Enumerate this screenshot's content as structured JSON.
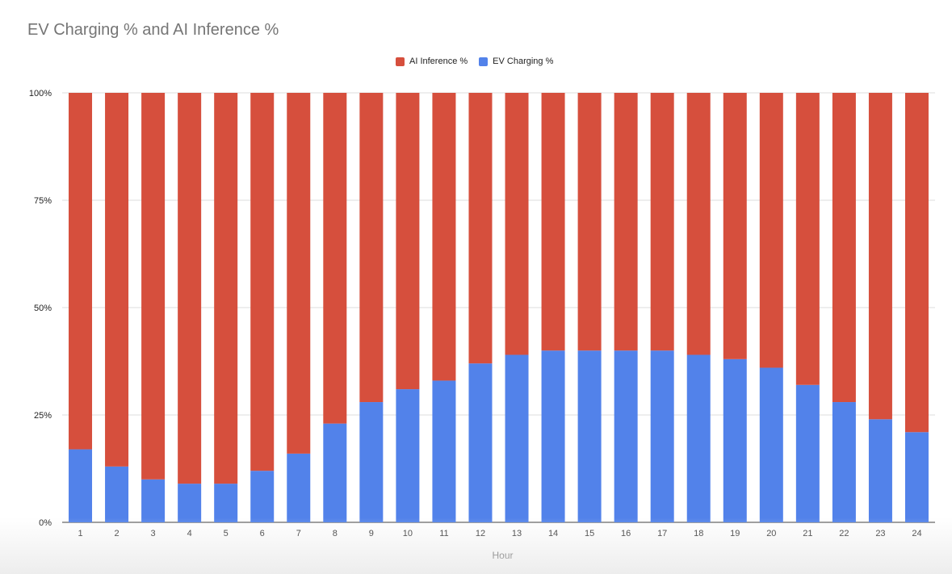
{
  "chart_data": {
    "type": "bar",
    "stacked": true,
    "title": "EV Charging % and AI Inference %",
    "xlabel": "Hour",
    "ylabel": "",
    "ylim": [
      0,
      100
    ],
    "y_ticks": [
      "0%",
      "25%",
      "50%",
      "75%",
      "100%"
    ],
    "y_tick_values": [
      0,
      25,
      50,
      75,
      100
    ],
    "grid": true,
    "legend_position": "top",
    "categories": [
      "1",
      "2",
      "3",
      "4",
      "5",
      "6",
      "7",
      "8",
      "9",
      "10",
      "11",
      "12",
      "13",
      "14",
      "15",
      "16",
      "17",
      "18",
      "19",
      "20",
      "21",
      "22",
      "23",
      "24"
    ],
    "series": [
      {
        "name": "EV Charging %",
        "color": "#5282EA",
        "values": [
          17,
          13,
          10,
          9,
          9,
          12,
          16,
          23,
          28,
          31,
          33,
          37,
          39,
          40,
          40,
          40,
          40,
          39,
          38,
          36,
          32,
          28,
          24,
          21
        ]
      },
      {
        "name": "AI Inference %",
        "color": "#D64F3D",
        "values": [
          83,
          87,
          90,
          91,
          91,
          88,
          84,
          77,
          72,
          69,
          67,
          63,
          61,
          60,
          60,
          60,
          60,
          61,
          62,
          64,
          68,
          72,
          76,
          79
        ]
      }
    ],
    "legend_order": [
      "AI Inference %",
      "EV Charging %"
    ]
  }
}
